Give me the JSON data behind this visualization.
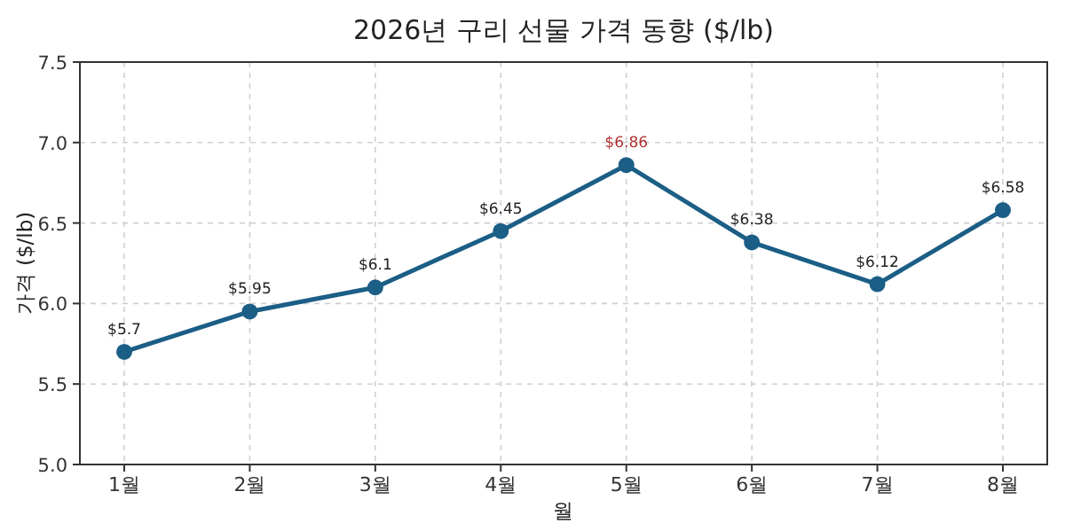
{
  "chart_data": {
    "type": "line",
    "title": "2026년 구리 선물 가격 동향 ($/lb)",
    "xlabel": "월",
    "ylabel": "가격 ($/lb)",
    "categories": [
      "1월",
      "2월",
      "3월",
      "4월",
      "5월",
      "6월",
      "7월",
      "8월"
    ],
    "series": [
      {
        "color": "#1b5e86",
        "values": [
          5.7,
          5.95,
          6.1,
          6.45,
          6.86,
          6.38,
          6.12,
          6.58
        ],
        "value_labels": [
          "$5.7",
          "$5.95",
          "$6.1",
          "$6.45",
          null,
          "$6.38",
          "$6.12",
          "$6.58"
        ]
      }
    ],
    "annotations": [
      {
        "text": "$6.86",
        "x": "5월",
        "y": 6.86
      }
    ],
    "ylim": [
      5,
      7.5
    ],
    "yticks": [
      {
        "value": 5,
        "label": "5.0"
      },
      {
        "value": 5.5,
        "label": "5.5"
      },
      {
        "value": 6,
        "label": "6.0"
      },
      {
        "value": 6.5,
        "label": "6.5"
      },
      {
        "value": 7,
        "label": "7.0"
      },
      {
        "value": 7.5,
        "label": "7.5"
      }
    ],
    "grid": true,
    "marker": "circle",
    "line_style": "solid"
  }
}
